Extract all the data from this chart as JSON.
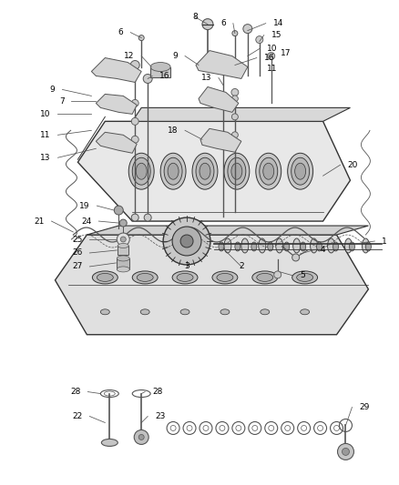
{
  "bg_color": "#ffffff",
  "fig_width": 4.38,
  "fig_height": 5.33,
  "dpi": 100,
  "gray": "#555555",
  "dgray": "#333333",
  "lgray": "#aaaaaa",
  "vlgray": "#cccccc",
  "fs": 6.5
}
